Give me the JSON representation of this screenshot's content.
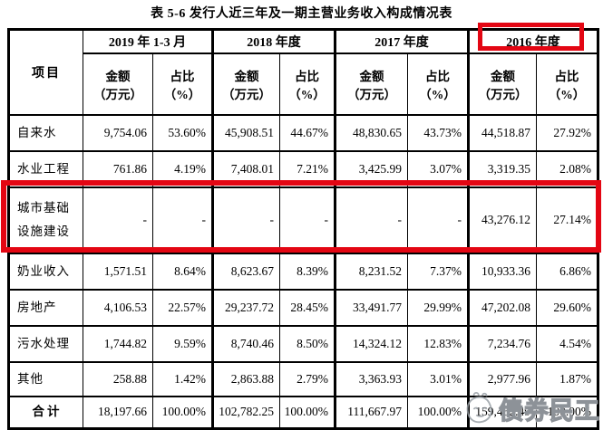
{
  "title": "表 5-6 发行人近三年及一期主营业务收入构成情况表",
  "table": {
    "item_header": "项目",
    "year_groups": [
      "2019 年 1-3 月",
      "2018 年度",
      "2017 年度",
      "2016 年度"
    ],
    "sub_headers": {
      "amount": {
        "line1": "金额",
        "line2": "（万元）"
      },
      "ratio": {
        "line1": "占比",
        "line2": "（%）"
      }
    },
    "rows": [
      {
        "label": "自来水",
        "cells": [
          "9,754.06",
          "53.60%",
          "45,908.51",
          "44.67%",
          "48,830.65",
          "43.73%",
          "44,518.87",
          "27.92%"
        ]
      },
      {
        "label": "水业工程",
        "cells": [
          "761.86",
          "4.19%",
          "7,408.01",
          "7.21%",
          "3,425.99",
          "3.07%",
          "3,319.35",
          "2.08%"
        ]
      },
      {
        "label": "城市基础设施建设",
        "highlighted": true,
        "cells": [
          "-",
          "-",
          "-",
          "-",
          "-",
          "-",
          "43,276.12",
          "27.14%"
        ]
      },
      {
        "label": "奶业收入",
        "cells": [
          "1,571.51",
          "8.64%",
          "8,623.67",
          "8.39%",
          "8,231.52",
          "7.37%",
          "10,933.36",
          "6.86%"
        ]
      },
      {
        "label": "房地产",
        "cells": [
          "4,106.53",
          "22.57%",
          "29,237.72",
          "28.45%",
          "33,491.77",
          "29.99%",
          "47,202.08",
          "29.60%"
        ]
      },
      {
        "label": "污水处理",
        "cells": [
          "1,744.82",
          "9.59%",
          "8,740.46",
          "8.50%",
          "14,324.12",
          "12.83%",
          "7,234.76",
          "4.54%"
        ]
      },
      {
        "label": "其他",
        "is_other": true,
        "cells": [
          "258.88",
          "1.42%",
          "2,863.88",
          "2.79%",
          "3,363.93",
          "3.01%",
          "2,977.96",
          "1.87%"
        ]
      },
      {
        "label": "合计",
        "is_total": true,
        "cells": [
          "18,197.66",
          "100.00%",
          "102,782.25",
          "100.00%",
          "111,667.97",
          "100.00%",
          "159,462.49",
          "100.00%"
        ]
      }
    ]
  },
  "annotations": {
    "header_highlight": "2016 年度 column circled in red",
    "row_highlight": "城市基础设施建设 row circled in red",
    "highlight_color": "#e30613"
  },
  "watermark": {
    "text": "债券民工",
    "logo": "scribble-face-icon",
    "color": "#9aa0a6"
  }
}
